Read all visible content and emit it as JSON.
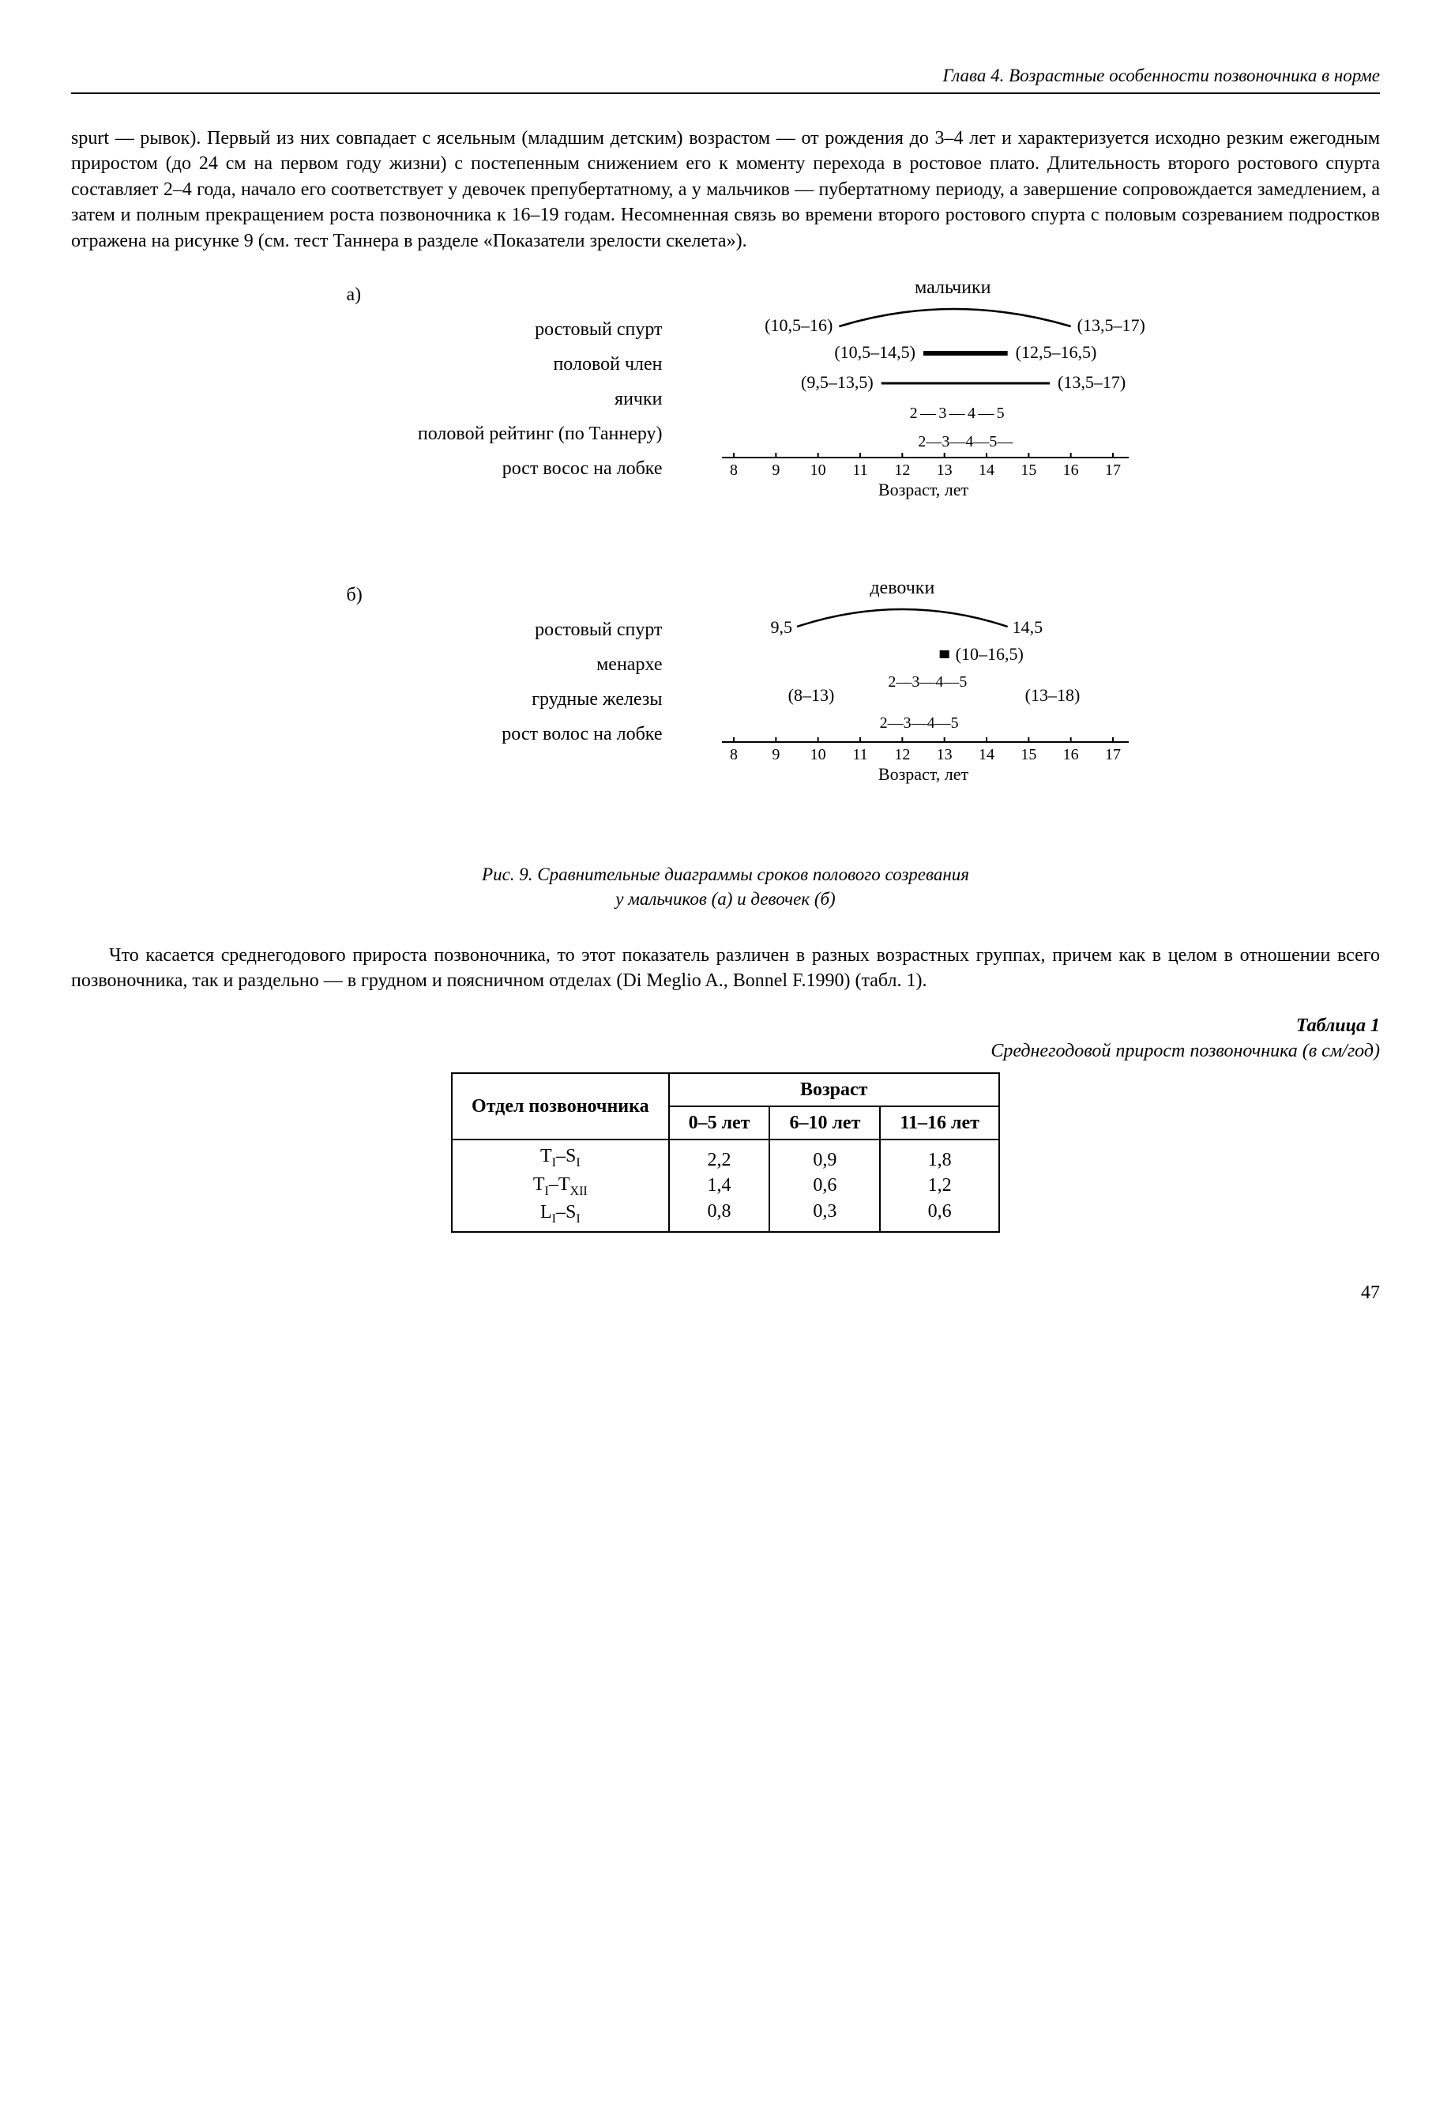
{
  "running_head": "Глава 4. Возрастные особенности позвоночника в норме",
  "para1": "spurt — рывок). Первый из них совпадает с ясельным (младшим детским) возрастом — от рождения до 3–4 лет и характеризуется исходно резким ежегодным приростом (до 24 см на первом году жизни) с постепенным снижением его к моменту перехода в ростовое плато. Длительность второго ростового спурта составляет 2–4 года, начало его соответствует у девочек препубертатному, а у мальчиков — пубертатному периоду, а завершение сопровож­дается замедлением, а затем и полным прекращением роста позвоночника к 16–19 годам. Несомненная связь во времени второго ростового спурта с половым созреванием подрост­ков отражена на рисунке 9 (см. тест Таннера в разделе «Показатели зрелости скелета»).",
  "figure": {
    "panel_a": {
      "letter": "а)",
      "title": "мальчики",
      "row_labels": [
        "ростовый спурт",
        "половой член",
        "яички",
        "половой рейтинг (по Таннеру)",
        "рост восос на лобке"
      ],
      "spurt_left": "(10,5–16)",
      "spurt_right": "(13,5–17)",
      "penis_left": "(10,5–14,5)",
      "penis_right": "(12,5–16,5)",
      "testes_left": "(9,5–13,5)",
      "testes_right": "(13,5–17)",
      "rating_seq": "2 — 3 — 4 — 5",
      "pubic_seq": "2—3—4—5—",
      "axis_ticks": [
        "8",
        "9",
        "10",
        "11",
        "12",
        "13",
        "14",
        "15",
        "16",
        "17"
      ],
      "axis_label": "Возраст, лет"
    },
    "panel_b": {
      "letter": "б)",
      "title": "девочки",
      "row_labels": [
        "ростовый спурт",
        "менархе",
        "грудные железы",
        "рост волос на лобке"
      ],
      "spurt_left": "9,5",
      "spurt_right": "14,5",
      "menarche": "(10–16,5)",
      "breast_left": "(8–13)",
      "breast_right": "(13–18)",
      "breast_seq": "2—3—4—5",
      "pubic_seq": "2—3—4—5",
      "axis_ticks": [
        "8",
        "9",
        "10",
        "11",
        "12",
        "13",
        "14",
        "15",
        "16",
        "17"
      ],
      "axis_label": "Возраст, лет"
    },
    "caption_line1": "Рис. 9. Сравнительные диаграммы сроков полового созревания",
    "caption_line2": "у мальчиков (а) и девочек (б)",
    "axis": {
      "min": 8,
      "max": 17,
      "pxwidth": 480
    },
    "stroke": "#000000",
    "stroke_width": 2.5
  },
  "para2": "Что касается среднегодового прироста позвоночника, то этот показатель различен в разных возрастных группах, причем как в целом в отношении всего позвоночника, так и раздельно — в грудном и поясничном отделах (Di Meglio A., Bonnel F.1990) (табл. 1).",
  "table": {
    "number": "Таблица 1",
    "caption": "Среднегодовой прирост позвоночника (в см/год)",
    "col_group": "Возраст",
    "rowhead": "Отдел позвоночника",
    "cols": [
      "0–5 лет",
      "6–10 лет",
      "11–16 лет"
    ],
    "row_labels_html": [
      "T<span class=\"sub\">I</span>–S<span class=\"sub\">I</span>",
      "T<span class=\"sub\">I</span>–T<span class=\"sub\">XII</span>",
      "L<span class=\"sub\">I</span>–S<span class=\"sub\">I</span>"
    ],
    "rows": [
      [
        "2,2",
        "0,9",
        "1,8"
      ],
      [
        "1,4",
        "0,6",
        "1,2"
      ],
      [
        "0,8",
        "0,3",
        "0,6"
      ]
    ]
  },
  "page_number": "47"
}
